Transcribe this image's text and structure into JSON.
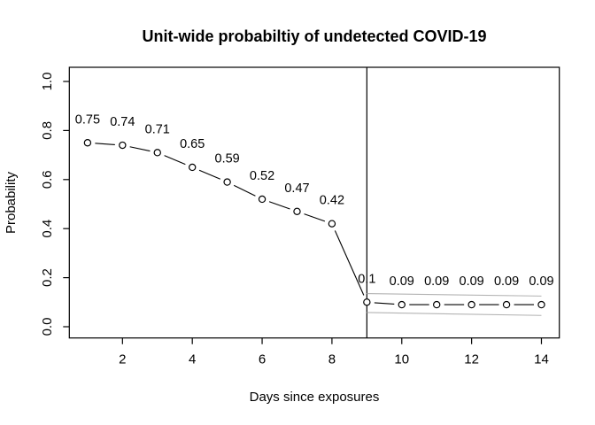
{
  "window": {
    "background": "#ffffff"
  },
  "chart_data": {
    "type": "line",
    "title": "Unit-wide probabiltiy of undetected COVID-19",
    "xlabel": "Days since exposures",
    "ylabel": "Probability",
    "x": [
      1,
      2,
      3,
      4,
      5,
      6,
      7,
      8,
      9,
      10,
      11,
      12,
      13,
      14
    ],
    "values": [
      0.75,
      0.74,
      0.71,
      0.65,
      0.59,
      0.52,
      0.47,
      0.42,
      0.1,
      0.09,
      0.09,
      0.09,
      0.09,
      0.09
    ],
    "point_labels": [
      "0.75",
      "0.74",
      "0.71",
      "0.65",
      "0.59",
      "0.52",
      "0.47",
      "0.42",
      "0.1",
      "0.09",
      "0.09",
      "0.09",
      "0.09",
      "0.09"
    ],
    "x_ticks": [
      2,
      4,
      6,
      8,
      10,
      12,
      14
    ],
    "y_ticks": [
      "0.0",
      "0.2",
      "0.4",
      "0.6",
      "0.8",
      "1.0"
    ],
    "xlim": [
      0.48,
      14.52
    ],
    "ylim": [
      -0.046,
      1.058
    ],
    "grid": false,
    "legend": "none",
    "marker": "open-circle",
    "line_style": "points-with-gapped-segments",
    "vline_x": 9,
    "ci_upper": {
      "x": [
        9,
        14
      ],
      "y": [
        0.135,
        0.125
      ]
    },
    "ci_lower": {
      "x": [
        9,
        14
      ],
      "y": [
        0.058,
        0.046
      ]
    },
    "colors": {
      "series": "#000000",
      "ci_band": "#b3b3b3",
      "axis": "#000000",
      "vline": "#000000",
      "background": "#ffffff"
    }
  }
}
